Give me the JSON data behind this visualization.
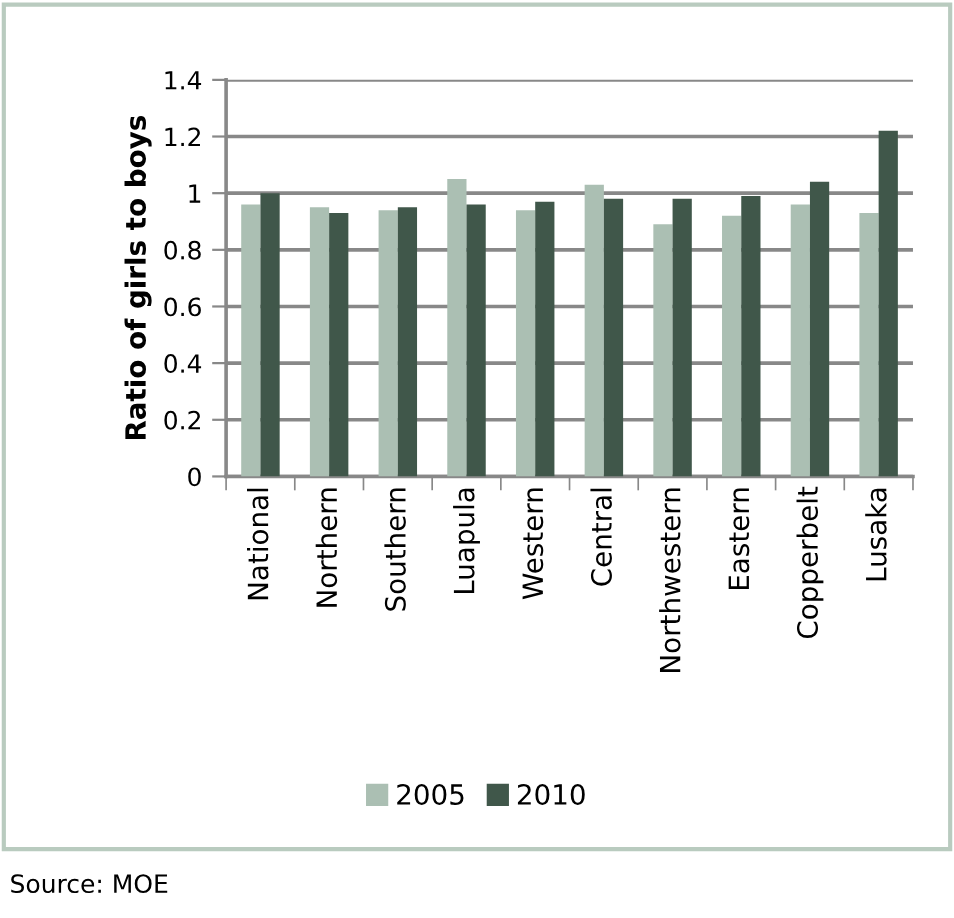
{
  "chart_data": {
    "type": "bar",
    "ylabel": "Ratio of girls to boys",
    "categories": [
      "National",
      "Northern",
      "Southern",
      "Luapula",
      "Western",
      "Central",
      "Northwestern",
      "Eastern",
      "Copperbelt",
      "Lusaka"
    ],
    "series": [
      {
        "name": "2005",
        "color": "#abbfb3",
        "values": [
          0.96,
          0.95,
          0.94,
          1.05,
          0.94,
          1.03,
          0.89,
          0.92,
          0.96,
          0.93
        ]
      },
      {
        "name": "2010",
        "color": "#40574a",
        "values": [
          1.0,
          0.93,
          0.95,
          0.96,
          0.97,
          0.98,
          0.98,
          0.99,
          1.04,
          1.22
        ]
      }
    ],
    "ylim": [
      0,
      1.4
    ],
    "yticks": [
      0,
      0.2,
      0.4,
      0.6,
      0.8,
      1,
      1.2,
      1.4
    ],
    "grid": "y",
    "legend": "bottom",
    "annotations": [
      "Source: MOE"
    ]
  }
}
